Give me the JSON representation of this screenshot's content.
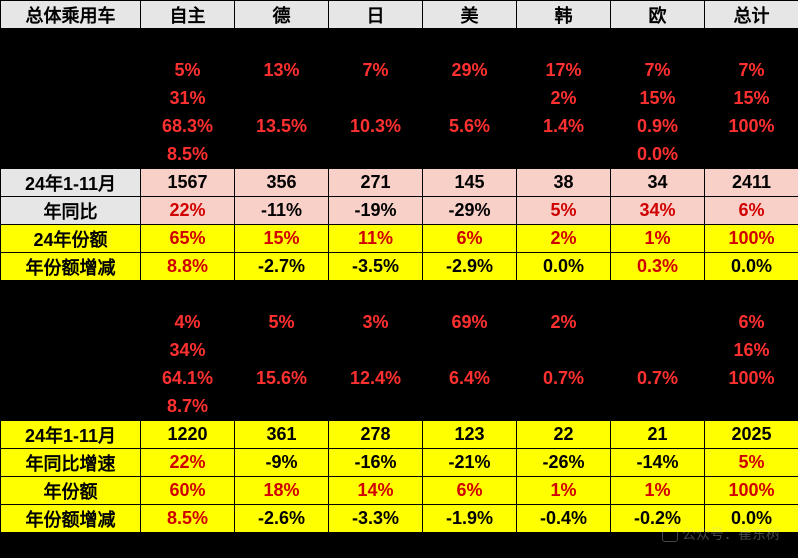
{
  "header": [
    "总体乘用车",
    "自主",
    "德",
    "日",
    "美",
    "韩",
    "欧",
    "总计"
  ],
  "rows": [
    {
      "cells": [
        {
          "t": "",
          "c": "black"
        },
        {
          "t": "",
          "c": "black"
        },
        {
          "t": "",
          "c": "black"
        },
        {
          "t": "",
          "c": "black"
        },
        {
          "t": "",
          "c": "black"
        },
        {
          "t": "",
          "c": "black"
        },
        {
          "t": "",
          "c": "black"
        },
        {
          "t": "",
          "c": "black"
        }
      ]
    },
    {
      "cells": [
        {
          "t": "",
          "c": "black"
        },
        {
          "t": "5%",
          "c": "blackRed"
        },
        {
          "t": "13%",
          "c": "blackRed"
        },
        {
          "t": "7%",
          "c": "blackRed"
        },
        {
          "t": "29%",
          "c": "blackRed"
        },
        {
          "t": "17%",
          "c": "blackRed"
        },
        {
          "t": "7%",
          "c": "blackRed"
        },
        {
          "t": "7%",
          "c": "blackRed"
        }
      ]
    },
    {
      "cells": [
        {
          "t": "",
          "c": "black"
        },
        {
          "t": "31%",
          "c": "blackRed"
        },
        {
          "t": "",
          "c": "black"
        },
        {
          "t": "",
          "c": "black"
        },
        {
          "t": "",
          "c": "black"
        },
        {
          "t": "2%",
          "c": "blackRed"
        },
        {
          "t": "15%",
          "c": "blackRed"
        },
        {
          "t": "15%",
          "c": "blackRed"
        }
      ]
    },
    {
      "cells": [
        {
          "t": "",
          "c": "black"
        },
        {
          "t": "68.3%",
          "c": "blackRed"
        },
        {
          "t": "13.5%",
          "c": "blackRed"
        },
        {
          "t": "10.3%",
          "c": "blackRed"
        },
        {
          "t": "5.6%",
          "c": "blackRed"
        },
        {
          "t": "1.4%",
          "c": "blackRed"
        },
        {
          "t": "0.9%",
          "c": "blackRed"
        },
        {
          "t": "100%",
          "c": "blackRed"
        }
      ]
    },
    {
      "cells": [
        {
          "t": "",
          "c": "black"
        },
        {
          "t": "8.5%",
          "c": "blackRed"
        },
        {
          "t": "",
          "c": "black"
        },
        {
          "t": "",
          "c": "black"
        },
        {
          "t": "",
          "c": "black"
        },
        {
          "t": "",
          "c": "black"
        },
        {
          "t": "0.0%",
          "c": "blackRed"
        },
        {
          "t": "",
          "c": "black"
        }
      ]
    },
    {
      "cells": [
        {
          "t": "24年1-11月",
          "c": "rowlabel-gray"
        },
        {
          "t": "1567",
          "c": "pink"
        },
        {
          "t": "356",
          "c": "pink"
        },
        {
          "t": "271",
          "c": "pink"
        },
        {
          "t": "145",
          "c": "pink"
        },
        {
          "t": "38",
          "c": "pink"
        },
        {
          "t": "34",
          "c": "pink"
        },
        {
          "t": "2411",
          "c": "pink"
        }
      ]
    },
    {
      "cells": [
        {
          "t": "年同比",
          "c": "rowlabel-gray"
        },
        {
          "t": "22%",
          "c": "pinkRed"
        },
        {
          "t": "-11%",
          "c": "pink"
        },
        {
          "t": "-19%",
          "c": "pink"
        },
        {
          "t": "-29%",
          "c": "pink"
        },
        {
          "t": "5%",
          "c": "pinkRed"
        },
        {
          "t": "34%",
          "c": "pinkRed"
        },
        {
          "t": "6%",
          "c": "pinkRed"
        }
      ]
    },
    {
      "cells": [
        {
          "t": "24年份额",
          "c": "yellow"
        },
        {
          "t": "65%",
          "c": "yellowRed"
        },
        {
          "t": "15%",
          "c": "yellowRed"
        },
        {
          "t": "11%",
          "c": "yellowRed"
        },
        {
          "t": "6%",
          "c": "yellowRed"
        },
        {
          "t": "2%",
          "c": "yellowRed"
        },
        {
          "t": "1%",
          "c": "yellowRed"
        },
        {
          "t": "100%",
          "c": "yellowRed"
        }
      ]
    },
    {
      "cells": [
        {
          "t": "年份额增减",
          "c": "yellow"
        },
        {
          "t": "8.8%",
          "c": "yellowRed"
        },
        {
          "t": "-2.7%",
          "c": "yellow"
        },
        {
          "t": "-3.5%",
          "c": "yellow"
        },
        {
          "t": "-2.9%",
          "c": "yellow"
        },
        {
          "t": "0.0%",
          "c": "yellow"
        },
        {
          "t": "0.3%",
          "c": "yellowRed"
        },
        {
          "t": "0.0%",
          "c": "yellow"
        }
      ]
    },
    {
      "cells": [
        {
          "t": "",
          "c": "black"
        },
        {
          "t": "",
          "c": "black"
        },
        {
          "t": "",
          "c": "black"
        },
        {
          "t": "",
          "c": "black"
        },
        {
          "t": "",
          "c": "black"
        },
        {
          "t": "",
          "c": "black"
        },
        {
          "t": "",
          "c": "black"
        },
        {
          "t": "",
          "c": "black"
        }
      ]
    },
    {
      "cells": [
        {
          "t": "",
          "c": "black"
        },
        {
          "t": "4%",
          "c": "blackRed"
        },
        {
          "t": "5%",
          "c": "blackRed"
        },
        {
          "t": "3%",
          "c": "blackRed"
        },
        {
          "t": "69%",
          "c": "blackRed"
        },
        {
          "t": "2%",
          "c": "blackRed"
        },
        {
          "t": "",
          "c": "black"
        },
        {
          "t": "6%",
          "c": "blackRed"
        }
      ]
    },
    {
      "cells": [
        {
          "t": "",
          "c": "black"
        },
        {
          "t": "34%",
          "c": "blackRed"
        },
        {
          "t": "",
          "c": "black"
        },
        {
          "t": "",
          "c": "black"
        },
        {
          "t": "",
          "c": "black"
        },
        {
          "t": "",
          "c": "black"
        },
        {
          "t": "",
          "c": "black"
        },
        {
          "t": "16%",
          "c": "blackRed"
        }
      ]
    },
    {
      "cells": [
        {
          "t": "",
          "c": "black"
        },
        {
          "t": "64.1%",
          "c": "blackRed"
        },
        {
          "t": "15.6%",
          "c": "blackRed"
        },
        {
          "t": "12.4%",
          "c": "blackRed"
        },
        {
          "t": "6.4%",
          "c": "blackRed"
        },
        {
          "t": "0.7%",
          "c": "blackRed"
        },
        {
          "t": "0.7%",
          "c": "blackRed"
        },
        {
          "t": "100%",
          "c": "blackRed"
        }
      ]
    },
    {
      "cells": [
        {
          "t": "",
          "c": "black"
        },
        {
          "t": "8.7%",
          "c": "blackRed"
        },
        {
          "t": "",
          "c": "black"
        },
        {
          "t": "",
          "c": "black"
        },
        {
          "t": "",
          "c": "black"
        },
        {
          "t": "",
          "c": "black"
        },
        {
          "t": "",
          "c": "black"
        },
        {
          "t": "",
          "c": "black"
        }
      ]
    },
    {
      "cells": [
        {
          "t": "24年1-11月",
          "c": "yellow"
        },
        {
          "t": "1220",
          "c": "yellow"
        },
        {
          "t": "361",
          "c": "yellow"
        },
        {
          "t": "278",
          "c": "yellow"
        },
        {
          "t": "123",
          "c": "yellow"
        },
        {
          "t": "22",
          "c": "yellow"
        },
        {
          "t": "21",
          "c": "yellow"
        },
        {
          "t": "2025",
          "c": "yellow"
        }
      ]
    },
    {
      "cells": [
        {
          "t": "年同比增速",
          "c": "yellow"
        },
        {
          "t": "22%",
          "c": "yellowRed"
        },
        {
          "t": "-9%",
          "c": "yellow"
        },
        {
          "t": "-16%",
          "c": "yellow"
        },
        {
          "t": "-21%",
          "c": "yellow"
        },
        {
          "t": "-26%",
          "c": "yellow"
        },
        {
          "t": "-14%",
          "c": "yellow"
        },
        {
          "t": "5%",
          "c": "yellowRed"
        }
      ]
    },
    {
      "cells": [
        {
          "t": "年份额",
          "c": "yellow"
        },
        {
          "t": "60%",
          "c": "yellowRed"
        },
        {
          "t": "18%",
          "c": "yellowRed"
        },
        {
          "t": "14%",
          "c": "yellowRed"
        },
        {
          "t": "6%",
          "c": "yellowRed"
        },
        {
          "t": "1%",
          "c": "yellowRed"
        },
        {
          "t": "1%",
          "c": "yellowRed"
        },
        {
          "t": "100%",
          "c": "yellowRed"
        }
      ]
    },
    {
      "cells": [
        {
          "t": "年份额增减",
          "c": "yellow"
        },
        {
          "t": "8.5%",
          "c": "yellowRed"
        },
        {
          "t": "-2.6%",
          "c": "yellow"
        },
        {
          "t": "-3.3%",
          "c": "yellow"
        },
        {
          "t": "-1.9%",
          "c": "yellow"
        },
        {
          "t": "-0.4%",
          "c": "yellow"
        },
        {
          "t": "-0.2%",
          "c": "yellow"
        },
        {
          "t": "0.0%",
          "c": "yellow"
        }
      ]
    }
  ],
  "watermark": "公众号：崔东树"
}
